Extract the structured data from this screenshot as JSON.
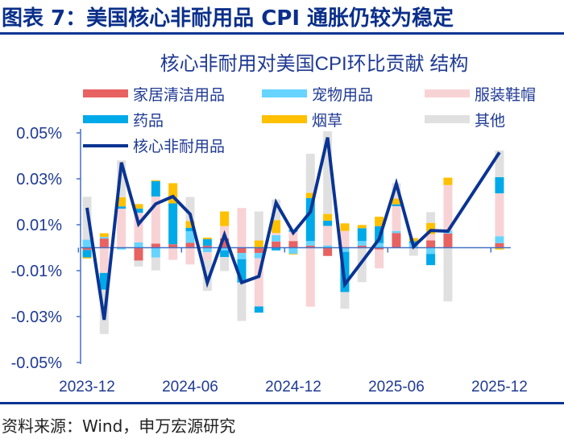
{
  "figure_title": "图表 7：美国核心非耐用品 CPI 通胀仍较为稳定",
  "source": "资料来源：Wind，申万宏源研究",
  "colors": {
    "text": "#1f3a93",
    "line": "#0a3493",
    "axis": "#4472c4"
  },
  "chart_data": {
    "type": "bar+line",
    "title": "核心非耐用对美国CPI环比贡献 结构",
    "stacked": true,
    "unit": "%",
    "ylim": [
      -0.05,
      0.05
    ],
    "yticks": [
      0.05,
      0.03,
      0.01,
      -0.01,
      -0.03,
      -0.05
    ],
    "ytick_labels": [
      "0.05%",
      "0.03%",
      "0.01%",
      "-0.01%",
      "-0.03%",
      "-0.05%"
    ],
    "xtick_labels": [
      "2023-12",
      "2024-06",
      "2024-12",
      "2025-06",
      "2025-12"
    ],
    "legend_placement": "top",
    "grid": false,
    "categories": [
      "2023-12",
      "2024-01",
      "2024-02",
      "2024-03",
      "2024-04",
      "2024-05",
      "2024-06",
      "2024-07",
      "2024-08",
      "2024-09",
      "2024-10",
      "2024-11",
      "2024-12",
      "2025-01",
      "2025-02",
      "2025-03",
      "2025-04",
      "2025-05",
      "2025-06",
      "2025-07",
      "2025-08",
      "2025-09",
      "2025-10",
      "2025-11",
      "2025-12"
    ],
    "series": [
      {
        "name": "家居清洁用品",
        "color": "#e86262",
        "values": [
          -0.001,
          0.004,
          0,
          -0.0056,
          0.0018,
          0.0015,
          0.0021,
          0.0009,
          0.0041,
          -0.0023,
          -0.0023,
          0.0027,
          0.0029,
          0.0009,
          -0.0036,
          0,
          0.0009,
          -0.0008,
          0.0064,
          0,
          0.0032,
          0.0062,
          null,
          null,
          0.002
        ]
      },
      {
        "name": "宠物用品",
        "color": "#66d4ff",
        "values": [
          0.0035,
          0.0007,
          -0.0008,
          0.0023,
          -0.0043,
          0,
          0.0051,
          -0.002,
          -0.0012,
          -0.0027,
          -0.0023,
          0.0028,
          -0.0027,
          0.002,
          0.001,
          -0.0018,
          0.002,
          0.002,
          0.0009,
          0.002,
          -0.0027,
          0.0012,
          null,
          null,
          0.003
        ]
      },
      {
        "name": "服装鞋帽",
        "color": "#f8d3d5",
        "values": [
          0,
          -0.011,
          0.017,
          0.0129,
          0.0205,
          -0.0053,
          -0.0073,
          -0.0033,
          0.0053,
          0.0173,
          -0.021,
          0.0009,
          0.0041,
          -0.0257,
          0.0085,
          0.0073,
          0,
          -0.0082,
          0.0108,
          0,
          0.0027,
          0.0199,
          null,
          null,
          0.0187
        ]
      },
      {
        "name": "药品",
        "color": "#00a9e8",
        "values": [
          -0.0032,
          -0.0073,
          0.001,
          0.0018,
          0.0067,
          0.0178,
          0.0015,
          0.0028,
          -0.0029,
          -0.0102,
          -0.0027,
          -0.0012,
          0.0008,
          0.0187,
          0.0023,
          -0.0175,
          0.0056,
          0.0074,
          0.0008,
          0.0008,
          -0.0049,
          0,
          null,
          null,
          0.007
        ]
      },
      {
        "name": "烟草",
        "color": "#ffc000",
        "values": [
          -0.0005,
          0.0016,
          0.004,
          0.002,
          0.0004,
          0.0088,
          0.0029,
          0.0007,
          0.0064,
          0,
          0.0032,
          0.0056,
          -0.0003,
          0.0023,
          0.0029,
          0.0033,
          0.0014,
          0.0041,
          0.0025,
          0.0014,
          0.0049,
          0.0032,
          null,
          null,
          -0.0008
        ]
      },
      {
        "name": "其他",
        "color": "#e0e0e0",
        "values": [
          0.0187,
          -0.0193,
          0.016,
          -0.0026,
          -0.0056,
          0,
          0.0105,
          -0.0135,
          -0.0061,
          -0.0167,
          0.0126,
          0.009,
          0,
          0.017,
          0.036,
          -0.0073,
          -0.015,
          0,
          0.0067,
          -0.0035,
          0.0047,
          -0.0234,
          null,
          null,
          0.0117
        ]
      }
    ],
    "line": {
      "name": "核心非耐用品",
      "color": "#0a3493",
      "values": [
        0.0174,
        -0.0314,
        0.0371,
        0.0103,
        0.0191,
        0.0223,
        0.0146,
        -0.0152,
        0.0056,
        -0.0152,
        -0.0125,
        0.0196,
        0.0065,
        0.0156,
        0.048,
        -0.016,
        -0.0061,
        0.0038,
        0.0279,
        0.0005,
        0.0075,
        0.0072,
        null,
        null,
        0.0415
      ]
    }
  }
}
